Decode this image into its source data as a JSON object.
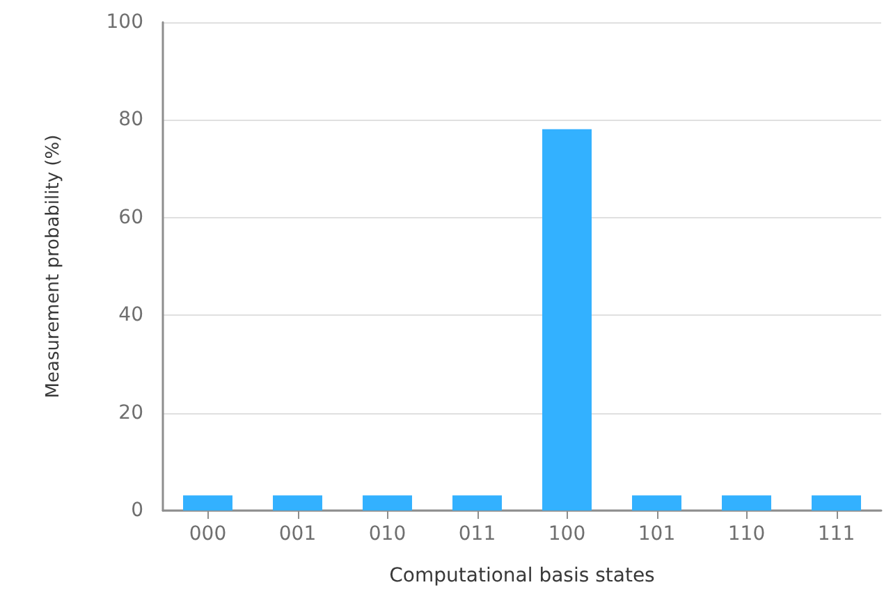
{
  "chart_data": {
    "type": "bar",
    "xlabel": "Computational basis states",
    "ylabel": "Measurement probability (%)",
    "categories": [
      "000",
      "001",
      "010",
      "011",
      "100",
      "101",
      "110",
      "111"
    ],
    "values": [
      3.1,
      3.1,
      3.1,
      3.1,
      78.1,
      3.1,
      3.1,
      3.1
    ],
    "color": "#33b1ff",
    "ylim": [
      0,
      100
    ],
    "yticks": [
      0,
      20,
      40,
      60,
      80,
      100
    ],
    "grid": "y"
  }
}
